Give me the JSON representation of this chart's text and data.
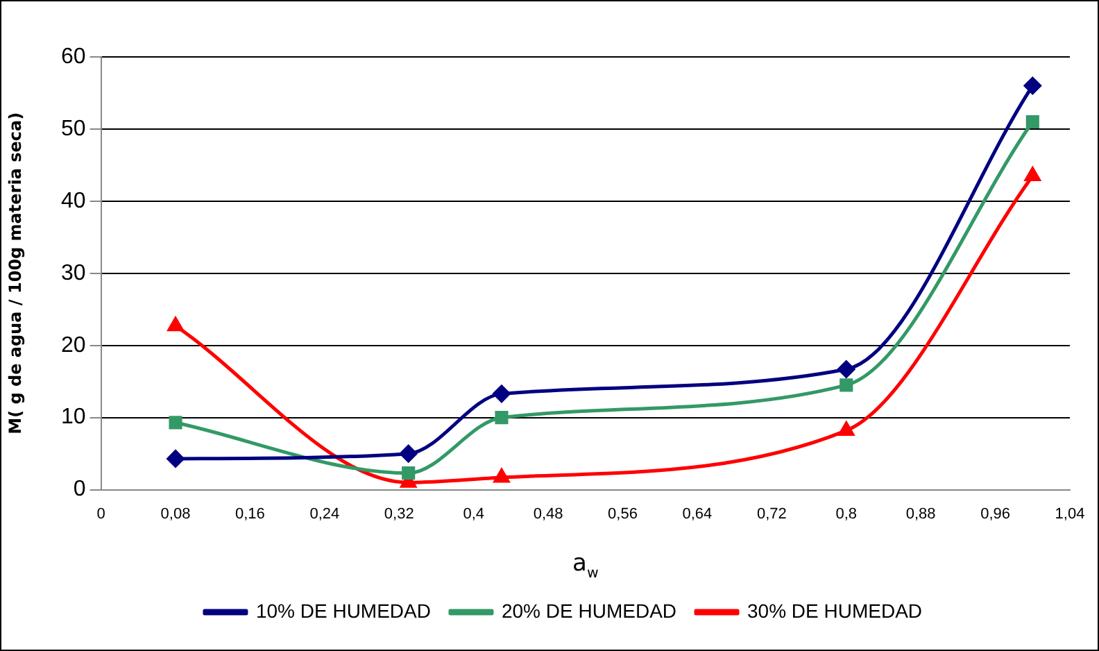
{
  "chart_data": {
    "type": "line",
    "xlabel": "a$_{w}$",
    "ylabel": "M( g de agua / 100g materia seca)",
    "xlim": [
      0,
      1.04
    ],
    "xticks": [
      0,
      {
        "value": 0.08,
        "label": "0,08"
      },
      {
        "value": 0.16,
        "label": "0,16"
      },
      {
        "value": 0.24,
        "label": "0,24"
      },
      {
        "value": 0.32,
        "label": "0,32"
      },
      {
        "value": 0.4,
        "label": "0,4"
      },
      {
        "value": 0.48,
        "label": "0,48"
      },
      {
        "value": 0.56,
        "label": "0,56"
      },
      {
        "value": 0.64,
        "label": "0,64"
      },
      {
        "value": 0.72,
        "label": "0,72"
      },
      {
        "value": 0.8,
        "label": "0,8"
      },
      {
        "value": 0.88,
        "label": "0,88"
      },
      {
        "value": 0.96,
        "label": "0,96"
      },
      {
        "value": 1.04,
        "label": "1,04"
      }
    ],
    "ylim": [
      0,
      60
    ],
    "yticks": [
      0,
      10,
      20,
      30,
      40,
      50,
      60
    ],
    "grid": "y",
    "legend": "bottom",
    "series": [
      {
        "name": "10% DE HUMEDAD",
        "color": "#000080",
        "marker": "diamond",
        "x": [
          0.08,
          0.33,
          0.43,
          0.8,
          1.0
        ],
        "values": [
          4.3,
          5.0,
          13.3,
          16.7,
          56
        ]
      },
      {
        "name": "20% DE HUMEDAD",
        "color": "#339966",
        "marker": "square",
        "x": [
          0.08,
          0.33,
          0.43,
          0.8,
          1.0
        ],
        "values": [
          9.3,
          2.3,
          10,
          14.5,
          51
        ]
      },
      {
        "name": "30% DE HUMEDAD",
        "color": "#ff0000",
        "marker": "triangle",
        "x": [
          0.08,
          0.33,
          0.43,
          0.8,
          1.0
        ],
        "values": [
          22.7,
          1,
          1.7,
          8.2,
          43.5
        ]
      }
    ]
  }
}
